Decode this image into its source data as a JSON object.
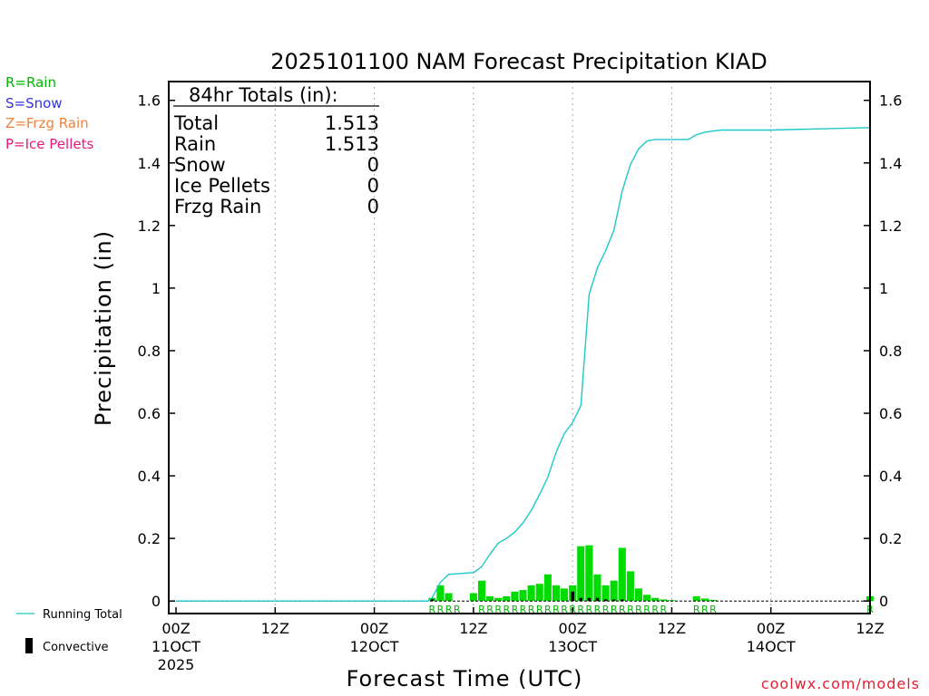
{
  "chart_data": {
    "type": "bar+line",
    "title": "2025101100 NAM Forecast Precipitation KIAD",
    "xlabel": "Forecast Time (UTC)",
    "ylabel": "Precipitation (in)",
    "ylim": [
      -0.04,
      1.66
    ],
    "yticks": [
      0,
      0.2,
      0.4,
      0.6,
      0.8,
      1,
      1.2,
      1.4,
      1.6
    ],
    "ytick_labels": [
      "0",
      "0.2",
      "0.4",
      "0.6",
      "0.8",
      "1",
      "1.2",
      "1.4",
      "1.6"
    ],
    "xlim_hours": [
      0,
      84
    ],
    "x_ticks": [
      {
        "hour": 0,
        "line1": "00Z",
        "line2": "11OCT",
        "line3": "2025"
      },
      {
        "hour": 12,
        "line1": "12Z",
        "line2": "",
        "line3": ""
      },
      {
        "hour": 24,
        "line1": "00Z",
        "line2": "12OCT",
        "line3": ""
      },
      {
        "hour": 36,
        "line1": "12Z",
        "line2": "",
        "line3": ""
      },
      {
        "hour": 48,
        "line1": "00Z",
        "line2": "13OCT",
        "line3": ""
      },
      {
        "hour": 60,
        "line1": "12Z",
        "line2": "",
        "line3": ""
      },
      {
        "hour": 72,
        "line1": "00Z",
        "line2": "14OCT",
        "line3": ""
      },
      {
        "hour": 84,
        "line1": "12Z",
        "line2": "",
        "line3": ""
      }
    ],
    "hourly_bars": {
      "hours": [
        31,
        32,
        33,
        36,
        37,
        38,
        39,
        40,
        41,
        42,
        43,
        44,
        45,
        46,
        47,
        48,
        49,
        50,
        51,
        52,
        53,
        54,
        55,
        56,
        57,
        58,
        59,
        60,
        63,
        64,
        65,
        84
      ],
      "precip": [
        0.01,
        0.05,
        0.025,
        0.025,
        0.065,
        0.015,
        0.01,
        0.015,
        0.03,
        0.035,
        0.05,
        0.055,
        0.085,
        0.05,
        0.04,
        0.05,
        0.175,
        0.178,
        0.085,
        0.05,
        0.065,
        0.17,
        0.095,
        0.04,
        0.02,
        0.01,
        0.005,
        0.003,
        0.015,
        0.008,
        0.004,
        0.015
      ],
      "convective_hours": [
        31,
        48,
        49,
        50,
        51,
        52,
        53,
        54
      ],
      "convective": [
        0.006,
        0.03,
        0.01,
        0.01,
        0.01,
        0.005,
        0.005,
        0.005
      ]
    },
    "running_total": {
      "hours": [
        0,
        30.5,
        31,
        32,
        33,
        35.5,
        36,
        37,
        38,
        39,
        40,
        41,
        42,
        43,
        44,
        45,
        46,
        47,
        48,
        49,
        50,
        51,
        52,
        53,
        54,
        55,
        56,
        57,
        58,
        59,
        60,
        61,
        62,
        63,
        64,
        65,
        66,
        67,
        68,
        69,
        70,
        71,
        72,
        84
      ],
      "values": [
        0,
        0,
        0.01,
        0.06,
        0.085,
        0.09,
        0.09,
        0.11,
        0.15,
        0.185,
        0.2,
        0.22,
        0.25,
        0.29,
        0.34,
        0.395,
        0.475,
        0.535,
        0.57,
        0.625,
        0.98,
        1.065,
        1.12,
        1.185,
        1.31,
        1.395,
        1.445,
        1.47,
        1.475,
        1.475,
        1.475,
        1.475,
        1.475,
        1.49,
        1.498,
        1.502,
        1.505,
        1.505,
        1.505,
        1.505,
        1.505,
        1.505,
        1.505,
        1.513
      ]
    },
    "ptype_markers": [
      {
        "hours": [
          31,
          32,
          33,
          34
        ],
        "label": "RRRR"
      },
      {
        "hours": [
          37,
          38,
          39,
          40,
          41,
          42,
          43,
          44,
          45,
          46,
          47,
          48,
          49,
          50,
          51,
          52,
          53,
          54,
          55,
          56,
          57,
          58,
          59
        ],
        "label": "RRRRRRRRRRRRRRRRRRRRRRR"
      },
      {
        "hours": [
          63,
          64,
          65
        ],
        "label": "RRR"
      },
      {
        "hours": [
          84
        ],
        "label": "R"
      }
    ],
    "totals_box": {
      "title": "84hr Totals (in):",
      "rows": [
        {
          "label": "Total",
          "value": "1.513"
        },
        {
          "label": "Rain",
          "value": "1.513"
        },
        {
          "label": "Snow",
          "value": "0"
        },
        {
          "label": "Ice Pellets",
          "value": "0"
        },
        {
          "label": "Frzg Rain",
          "value": "0"
        }
      ]
    },
    "type_legend": [
      {
        "text": "R=Rain",
        "color": "#00b400"
      },
      {
        "text": "S=Snow",
        "color": "#3232e6"
      },
      {
        "text": "Z=Frzg Rain",
        "color": "#f0823c"
      },
      {
        "text": "P=Ice Pellets",
        "color": "#e6197d"
      }
    ],
    "series_legend": {
      "running_total": "Running Total",
      "convective": "Convective"
    },
    "colors": {
      "rain_bar": "#00dc00",
      "convective": "#000000",
      "running_total": "#1ec8c8",
      "ptype_text": "#00b400",
      "grid": "#aaaaaa",
      "credit": "#e61e32"
    }
  },
  "credit": "coolwx.com/models"
}
